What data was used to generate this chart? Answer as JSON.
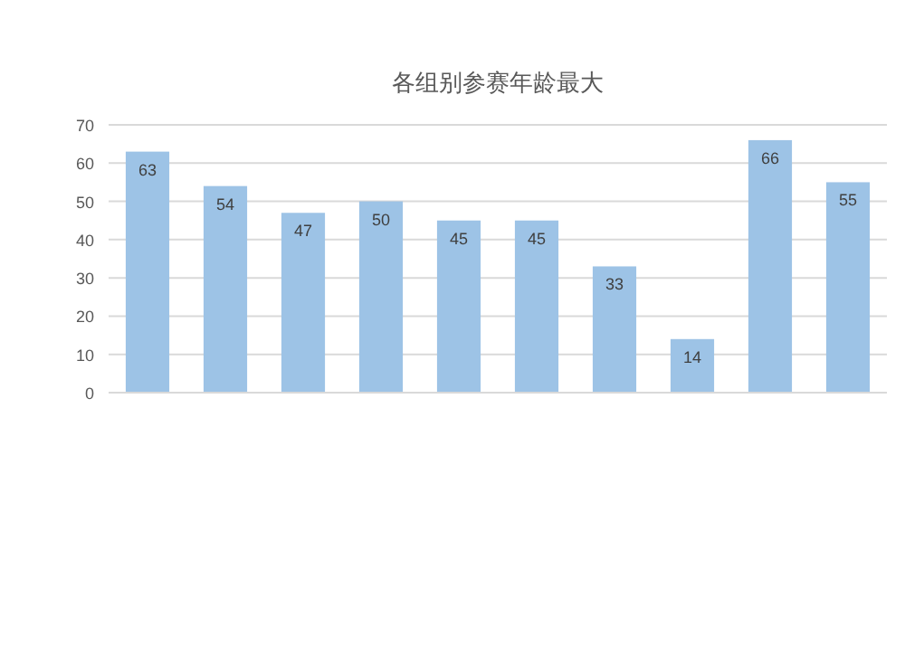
{
  "chart_data": {
    "type": "bar",
    "title": "各组别参赛年龄最大",
    "categories": [
      null,
      null,
      null,
      null,
      null,
      null,
      null,
      null,
      null,
      null
    ],
    "values": [
      63,
      54,
      47,
      50,
      45,
      45,
      33,
      14,
      66,
      55
    ],
    "color": "#9dc3e6",
    "ylim": [
      0,
      70
    ],
    "yticks": [
      0,
      10,
      20,
      30,
      40,
      50,
      60,
      70
    ],
    "grid": "y",
    "data_labels": true,
    "tick_labels": "y"
  }
}
